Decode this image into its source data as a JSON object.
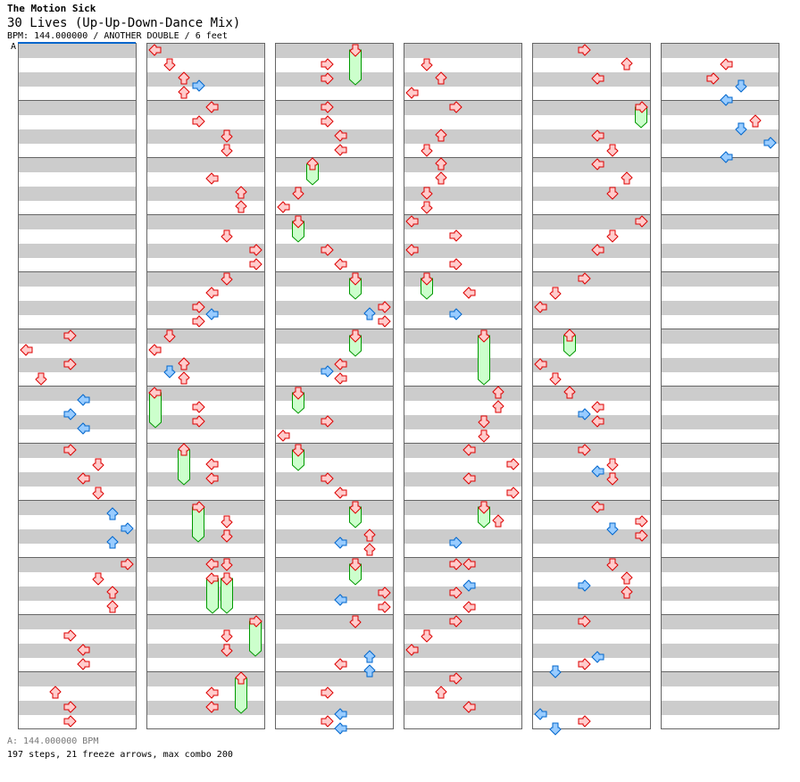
{
  "header": {
    "artist": "The Motion Sick",
    "title": "30 Lives (Up-Up-Down-Dance Mix)",
    "info": "BPM: 144.000000 / ANOTHER DOUBLE / 6 feet"
  },
  "bpm_marker_label": "A",
  "footer": {
    "bpm": "A: 144.000000 BPM",
    "stats": "197 steps, 21 freeze arrows, max combo 200"
  },
  "colors": {
    "tap_fill": "#ffcccc",
    "tap_stroke": "#dd0000",
    "eighth_fill": "#99ccff",
    "eighth_stroke": "#0066cc",
    "freeze_fill": "#ccffcc",
    "freeze_stroke": "#009900",
    "bpm_marker": "#0066cc"
  },
  "chart_data": {
    "type": "table",
    "measures": 72,
    "measures_per_column": 12,
    "lanes": [
      "left",
      "down",
      "up",
      "right",
      "left",
      "down",
      "up",
      "right"
    ],
    "notes": [
      [
        5,
        0,
        3
      ],
      [
        5,
        1,
        0
      ],
      [
        5,
        2,
        3
      ],
      [
        5,
        3,
        1
      ],
      [
        6,
        0.5,
        4
      ],
      [
        6,
        1.5,
        3
      ],
      [
        6,
        2.5,
        4
      ],
      [
        7,
        0,
        3
      ],
      [
        7,
        1,
        5
      ],
      [
        7,
        2,
        4
      ],
      [
        7,
        3,
        5
      ],
      [
        8,
        0.5,
        6
      ],
      [
        8,
        1.5,
        7
      ],
      [
        8,
        2.5,
        6
      ],
      [
        9,
        0,
        7
      ],
      [
        9,
        1,
        5
      ],
      [
        9,
        2,
        6
      ],
      [
        9,
        3,
        6
      ],
      [
        10,
        1,
        3
      ],
      [
        10,
        2,
        4
      ],
      [
        10,
        3,
        4
      ],
      [
        11,
        1,
        2
      ],
      [
        11,
        2,
        3
      ],
      [
        11,
        3,
        3
      ],
      [
        12,
        0,
        0
      ],
      [
        12,
        1,
        1
      ],
      [
        12,
        2,
        2
      ],
      [
        12,
        2.5,
        3
      ],
      [
        12,
        3,
        2
      ],
      [
        13,
        0,
        4
      ],
      [
        13,
        1,
        3
      ],
      [
        13,
        2,
        5
      ],
      [
        13,
        3,
        5
      ],
      [
        14,
        1,
        4
      ],
      [
        14,
        2,
        6
      ],
      [
        14,
        3,
        6
      ],
      [
        15,
        1,
        5
      ],
      [
        15,
        2,
        7
      ],
      [
        15,
        3,
        7
      ],
      [
        16,
        0,
        5
      ],
      [
        16,
        1,
        4
      ],
      [
        16,
        2,
        3
      ],
      [
        16,
        2.5,
        4
      ],
      [
        16,
        3,
        3
      ],
      [
        17,
        0,
        1
      ],
      [
        17,
        1,
        0
      ],
      [
        17,
        2,
        2
      ],
      [
        17,
        2.5,
        1
      ],
      [
        17,
        3,
        2
      ],
      [
        18,
        1,
        3
      ],
      [
        18,
        2,
        3
      ],
      [
        19,
        1,
        4
      ],
      [
        19,
        2,
        4
      ],
      [
        20,
        1,
        5
      ],
      [
        20,
        2,
        5
      ],
      [
        21,
        0,
        4
      ],
      [
        21,
        0,
        5
      ],
      [
        22,
        1,
        5
      ],
      [
        22,
        2,
        5
      ],
      [
        23,
        1,
        4
      ],
      [
        23,
        2,
        4
      ],
      [
        24,
        1,
        3
      ],
      [
        24,
        2,
        3
      ],
      [
        25,
        0,
        3
      ],
      [
        25,
        1,
        3
      ],
      [
        25,
        2,
        4
      ],
      [
        25,
        3,
        4
      ],
      [
        26,
        2,
        1
      ],
      [
        26,
        3,
        0
      ],
      [
        27,
        2,
        3
      ],
      [
        27,
        3,
        4
      ],
      [
        28,
        2,
        7
      ],
      [
        28,
        2.5,
        6
      ],
      [
        28,
        3,
        7
      ],
      [
        29,
        2,
        4
      ],
      [
        29,
        2.5,
        3
      ],
      [
        29,
        3,
        4
      ],
      [
        30,
        2,
        3
      ],
      [
        30,
        3,
        0
      ],
      [
        31,
        2,
        3
      ],
      [
        31,
        3,
        4
      ],
      [
        32,
        2,
        6
      ],
      [
        32,
        2.5,
        4
      ],
      [
        32,
        3,
        6
      ],
      [
        33,
        2,
        7
      ],
      [
        33,
        2.5,
        4
      ],
      [
        33,
        3,
        7
      ],
      [
        34,
        0,
        5
      ],
      [
        34,
        2.5,
        6
      ],
      [
        34,
        3,
        4
      ],
      [
        34,
        3.5,
        6
      ],
      [
        35,
        1,
        3
      ],
      [
        35,
        2.5,
        4
      ],
      [
        35,
        3,
        3
      ],
      [
        35,
        3.5,
        4
      ],
      [
        36,
        1,
        1
      ],
      [
        36,
        2,
        2
      ],
      [
        36,
        3,
        0
      ],
      [
        37,
        0,
        3
      ],
      [
        37,
        2,
        2
      ],
      [
        37,
        3,
        1
      ],
      [
        38,
        0,
        2
      ],
      [
        38,
        1,
        2
      ],
      [
        38,
        2,
        1
      ],
      [
        38,
        3,
        1
      ],
      [
        39,
        0,
        0
      ],
      [
        39,
        1,
        3
      ],
      [
        39,
        2,
        0
      ],
      [
        39,
        3,
        3
      ],
      [
        40,
        1,
        4
      ],
      [
        40,
        2.5,
        3
      ],
      [
        42,
        0,
        6
      ],
      [
        42,
        1,
        6
      ],
      [
        42,
        2,
        5
      ],
      [
        42,
        3,
        5
      ],
      [
        43,
        0,
        4
      ],
      [
        43,
        1,
        7
      ],
      [
        43,
        2,
        4
      ],
      [
        43,
        3,
        7
      ],
      [
        44,
        1,
        6
      ],
      [
        44,
        2.5,
        3
      ],
      [
        45,
        0,
        3
      ],
      [
        45,
        0,
        4
      ],
      [
        45,
        1.5,
        4
      ],
      [
        45,
        2,
        3
      ],
      [
        45,
        3,
        4
      ],
      [
        46,
        0,
        3
      ],
      [
        46,
        1,
        1
      ],
      [
        46,
        2,
        0
      ],
      [
        47,
        0,
        3
      ],
      [
        47,
        1,
        2
      ],
      [
        47,
        2,
        4
      ],
      [
        48,
        0,
        3
      ],
      [
        48,
        1,
        6
      ],
      [
        48,
        2,
        4
      ],
      [
        49,
        2,
        4
      ],
      [
        49,
        3,
        5
      ],
      [
        50,
        0,
        4
      ],
      [
        50,
        1,
        6
      ],
      [
        50,
        2,
        5
      ],
      [
        51,
        0,
        7
      ],
      [
        51,
        1,
        5
      ],
      [
        51,
        2,
        4
      ],
      [
        52,
        0,
        3
      ],
      [
        52,
        1,
        1
      ],
      [
        52,
        2,
        0
      ],
      [
        53,
        2,
        0
      ],
      [
        53,
        3,
        1
      ],
      [
        54,
        0,
        2
      ],
      [
        54,
        1,
        4
      ],
      [
        54,
        1.5,
        3
      ],
      [
        54,
        2,
        4
      ],
      [
        55,
        0,
        3
      ],
      [
        55,
        1,
        5
      ],
      [
        55,
        1.5,
        4
      ],
      [
        55,
        2,
        5
      ],
      [
        56,
        0,
        4
      ],
      [
        56,
        1,
        7
      ],
      [
        56,
        1.5,
        5
      ],
      [
        56,
        2,
        7
      ],
      [
        57,
        0,
        5
      ],
      [
        57,
        1,
        6
      ],
      [
        57,
        1.5,
        3
      ],
      [
        57,
        2,
        6
      ],
      [
        58,
        0,
        3
      ],
      [
        58,
        2.5,
        4
      ],
      [
        58,
        3,
        3
      ],
      [
        58,
        3.5,
        1
      ],
      [
        59,
        2.5,
        0
      ],
      [
        59,
        3,
        3
      ],
      [
        59,
        3.5,
        1
      ],
      [
        60,
        1,
        4
      ],
      [
        60,
        2,
        3
      ],
      [
        60,
        2.5,
        5
      ],
      [
        60,
        3.5,
        4
      ],
      [
        61,
        1,
        6
      ],
      [
        61,
        1.5,
        5
      ],
      [
        61,
        2.5,
        7
      ],
      [
        61,
        3.5,
        4
      ]
    ],
    "freezes": [
      [
        18,
        0,
        0,
        2
      ],
      [
        19,
        0,
        2,
        2
      ],
      [
        20,
        0,
        3,
        2
      ],
      [
        21,
        1,
        4,
        2
      ],
      [
        21,
        1,
        5,
        2
      ],
      [
        22,
        0,
        7,
        2
      ],
      [
        23,
        0,
        6,
        2
      ],
      [
        24,
        0,
        5,
        2
      ],
      [
        26,
        0,
        2,
        1
      ],
      [
        27,
        0,
        1,
        1
      ],
      [
        28,
        0,
        5,
        1
      ],
      [
        29,
        0,
        5,
        1
      ],
      [
        30,
        0,
        1,
        1
      ],
      [
        31,
        0,
        1,
        1
      ],
      [
        32,
        0,
        5,
        1
      ],
      [
        33,
        0,
        5,
        1
      ],
      [
        40,
        0,
        1,
        1
      ],
      [
        41,
        0,
        5,
        3
      ],
      [
        44,
        0,
        5,
        1
      ],
      [
        49,
        0,
        7,
        1
      ],
      [
        53,
        0,
        2,
        1
      ]
    ]
  }
}
